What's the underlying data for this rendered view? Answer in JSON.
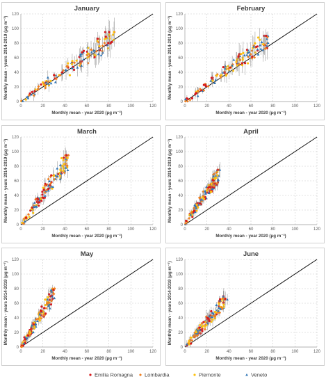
{
  "figure": {
    "legend": [
      {
        "name": "Emilia Romagna",
        "color": "#d7191c",
        "marker": "circle"
      },
      {
        "name": "Lombardia",
        "color": "#f07f1f",
        "marker": "diamond"
      },
      {
        "name": "Piemonte",
        "color": "#fdc10e",
        "marker": "circle"
      },
      {
        "name": "Veneto",
        "color": "#2e75b6",
        "marker": "triangle"
      }
    ],
    "xlabel": "Monthly mean - year 2020 (μg m⁻³)",
    "ylabel": "Monthly mean - years 2014-2019 (μg m⁻³)"
  },
  "chart_data": [
    {
      "type": "scatter",
      "title": "January",
      "xlim": [
        0,
        120
      ],
      "ylim": [
        0,
        120
      ],
      "xticks": [
        0,
        20,
        40,
        60,
        80,
        100,
        120
      ],
      "yticks": [
        0,
        20,
        40,
        60,
        80,
        100,
        120
      ],
      "grid": true,
      "reference_line": "y = x",
      "cluster": {
        "x_range": [
          0,
          90
        ],
        "y_range": [
          0,
          95
        ]
      }
    },
    {
      "type": "scatter",
      "title": "February",
      "xlim": [
        0,
        120
      ],
      "ylim": [
        0,
        120
      ],
      "xticks": [
        0,
        20,
        40,
        60,
        80,
        100,
        120
      ],
      "yticks": [
        0,
        20,
        40,
        60,
        80,
        100,
        120
      ],
      "grid": true,
      "reference_line": "y = x",
      "cluster": {
        "x_range": [
          0,
          80
        ],
        "y_range": [
          0,
          90
        ]
      }
    },
    {
      "type": "scatter",
      "title": "March",
      "xlim": [
        0,
        120
      ],
      "ylim": [
        0,
        120
      ],
      "xticks": [
        0,
        20,
        40,
        60,
        80,
        100,
        120
      ],
      "yticks": [
        0,
        20,
        40,
        60,
        80,
        100,
        120
      ],
      "grid": true,
      "reference_line": "y = x",
      "cluster": {
        "x_range": [
          0,
          45
        ],
        "y_range": [
          0,
          95
        ]
      }
    },
    {
      "type": "scatter",
      "title": "April",
      "xlim": [
        0,
        120
      ],
      "ylim": [
        0,
        120
      ],
      "xticks": [
        0,
        20,
        40,
        60,
        80,
        100,
        120
      ],
      "yticks": [
        0,
        20,
        40,
        60,
        80,
        100,
        120
      ],
      "grid": true,
      "reference_line": "y = x",
      "cluster": {
        "x_range": [
          0,
          33
        ],
        "y_range": [
          0,
          75
        ]
      }
    },
    {
      "type": "scatter",
      "title": "May",
      "xlim": [
        0,
        120
      ],
      "ylim": [
        0,
        120
      ],
      "xticks": [
        0,
        20,
        40,
        60,
        80,
        100,
        120
      ],
      "yticks": [
        0,
        20,
        40,
        60,
        80,
        100,
        120
      ],
      "grid": true,
      "reference_line": "y = x",
      "cluster": {
        "x_range": [
          0,
          32
        ],
        "y_range": [
          0,
          80
        ]
      }
    },
    {
      "type": "scatter",
      "title": "June",
      "xlim": [
        0,
        120
      ],
      "ylim": [
        0,
        120
      ],
      "xticks": [
        0,
        20,
        40,
        60,
        80,
        100,
        120
      ],
      "yticks": [
        0,
        20,
        40,
        60,
        80,
        100,
        120
      ],
      "grid": true,
      "reference_line": "y = x",
      "cluster": {
        "x_range": [
          0,
          40
        ],
        "y_range": [
          0,
          70
        ]
      }
    }
  ]
}
